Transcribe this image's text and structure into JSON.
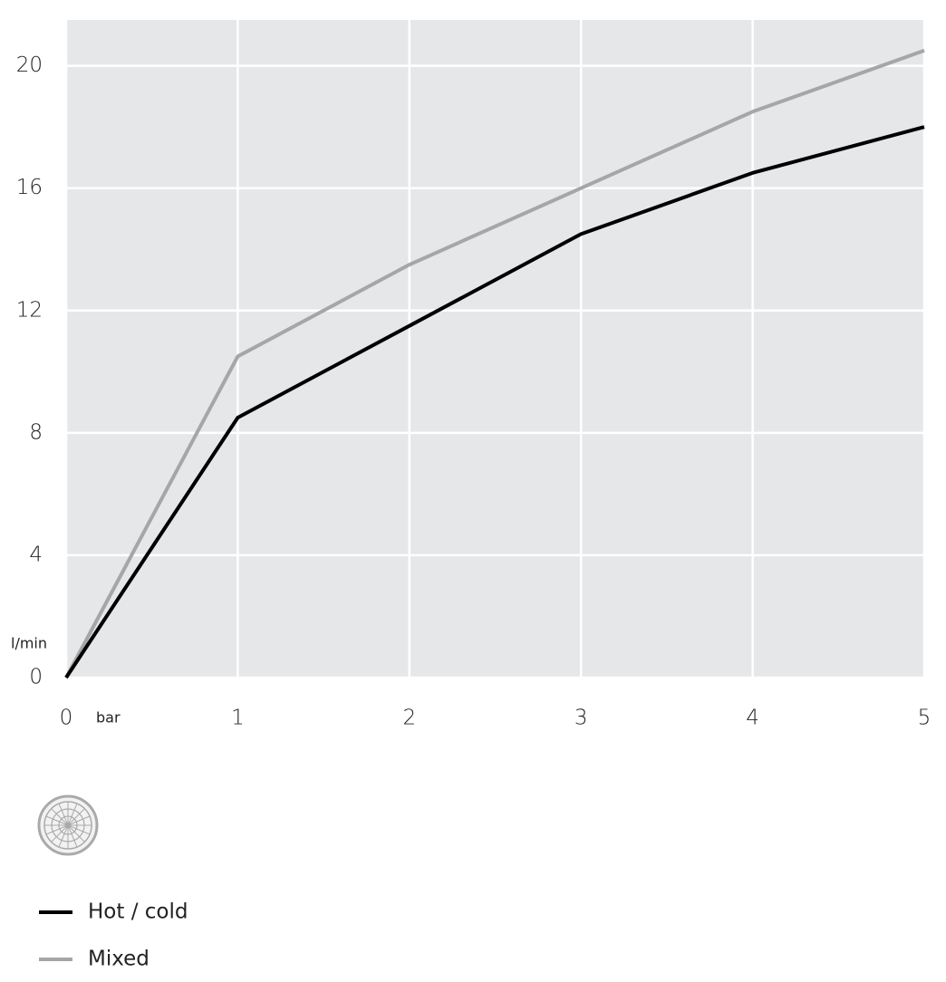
{
  "chart_data": {
    "type": "line",
    "x": [
      0,
      1,
      2,
      3,
      4,
      5
    ],
    "series": [
      {
        "name": "Hot / cold",
        "color": "#000000",
        "values": [
          0,
          8.5,
          11.5,
          14.5,
          16.5,
          18
        ]
      },
      {
        "name": "Mixed",
        "color": "#a6a6a6",
        "values": [
          0,
          10.5,
          13.5,
          16,
          18.5,
          20.5
        ]
      }
    ],
    "xlabel": "bar",
    "ylabel": "l/min",
    "xlim": [
      0,
      5
    ],
    "xticks": [
      0,
      1,
      2,
      3,
      4,
      5
    ],
    "ylim": [
      0,
      21.5
    ],
    "yticks": [
      0,
      4,
      8,
      12,
      16,
      20
    ],
    "grid": true
  }
}
